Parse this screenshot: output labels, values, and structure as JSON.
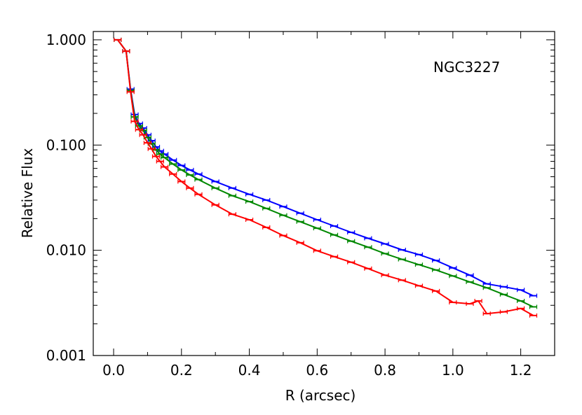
{
  "chart_data": {
    "type": "line",
    "title": "",
    "annotation": "NGC3227",
    "xlabel": "R (arcsec)",
    "ylabel": "Relative Flux",
    "xlim": [
      -0.06,
      1.3
    ],
    "ylim": [
      0.001,
      1.2
    ],
    "yscale": "log",
    "grid": false,
    "x_ticks": [
      0.0,
      0.2,
      0.4,
      0.6,
      0.8,
      1.0,
      1.2
    ],
    "x_tick_labels": [
      "0.0",
      "0.2",
      "0.4",
      "0.6",
      "0.8",
      "1.0",
      "1.2"
    ],
    "y_ticks": [
      0.001,
      0.01,
      0.1,
      1.0
    ],
    "y_tick_labels": [
      "0.001",
      "0.010",
      "0.100",
      "1.000"
    ],
    "series": [
      {
        "color": "#0000ff",
        "x": [
          0.012,
          0.037,
          0.05,
          0.062,
          0.075,
          0.087,
          0.1,
          0.112,
          0.125,
          0.137,
          0.15,
          0.175,
          0.2,
          0.225,
          0.25,
          0.3,
          0.35,
          0.4,
          0.45,
          0.5,
          0.55,
          0.6,
          0.65,
          0.7,
          0.75,
          0.8,
          0.85,
          0.9,
          0.95,
          1.0,
          1.05,
          1.1,
          1.15,
          1.2,
          1.237
        ],
        "y": [
          1.0,
          0.78,
          0.34,
          0.195,
          0.16,
          0.145,
          0.125,
          0.11,
          0.096,
          0.088,
          0.082,
          0.072,
          0.064,
          0.058,
          0.053,
          0.045,
          0.039,
          0.034,
          0.03,
          0.026,
          0.0225,
          0.0195,
          0.017,
          0.0148,
          0.013,
          0.0115,
          0.0101,
          0.0091,
          0.008,
          0.0068,
          0.0058,
          0.0048,
          0.0045,
          0.0042,
          0.0037
        ]
      },
      {
        "color": "#008800",
        "x": [
          0.012,
          0.037,
          0.05,
          0.062,
          0.075,
          0.087,
          0.1,
          0.112,
          0.125,
          0.137,
          0.15,
          0.175,
          0.2,
          0.225,
          0.25,
          0.3,
          0.35,
          0.4,
          0.45,
          0.5,
          0.55,
          0.6,
          0.65,
          0.7,
          0.75,
          0.8,
          0.85,
          0.9,
          0.95,
          1.0,
          1.05,
          1.1,
          1.15,
          1.2,
          1.237
        ],
        "y": [
          1.0,
          0.78,
          0.33,
          0.185,
          0.152,
          0.138,
          0.118,
          0.103,
          0.09,
          0.082,
          0.076,
          0.066,
          0.058,
          0.052,
          0.047,
          0.039,
          0.033,
          0.029,
          0.025,
          0.0215,
          0.0187,
          0.0162,
          0.014,
          0.0122,
          0.0107,
          0.0093,
          0.0082,
          0.0073,
          0.0065,
          0.0057,
          0.005,
          0.0044,
          0.0038,
          0.0033,
          0.0029
        ]
      },
      {
        "color": "#ff0000",
        "x": [
          0.012,
          0.037,
          0.05,
          0.062,
          0.075,
          0.087,
          0.1,
          0.112,
          0.125,
          0.137,
          0.15,
          0.175,
          0.2,
          0.225,
          0.25,
          0.3,
          0.35,
          0.4,
          0.45,
          0.5,
          0.55,
          0.6,
          0.65,
          0.7,
          0.75,
          0.8,
          0.85,
          0.9,
          0.95,
          1.0,
          1.05,
          1.075,
          1.1,
          1.15,
          1.2,
          1.237
        ],
        "y": [
          1.0,
          0.78,
          0.32,
          0.168,
          0.14,
          0.125,
          0.105,
          0.092,
          0.078,
          0.07,
          0.062,
          0.053,
          0.045,
          0.039,
          0.034,
          0.027,
          0.022,
          0.0195,
          0.0165,
          0.0138,
          0.0118,
          0.0099,
          0.0087,
          0.0077,
          0.0067,
          0.0058,
          0.0052,
          0.0046,
          0.0041,
          0.0032,
          0.0031,
          0.0033,
          0.0025,
          0.0026,
          0.0028,
          0.0024
        ]
      }
    ]
  }
}
